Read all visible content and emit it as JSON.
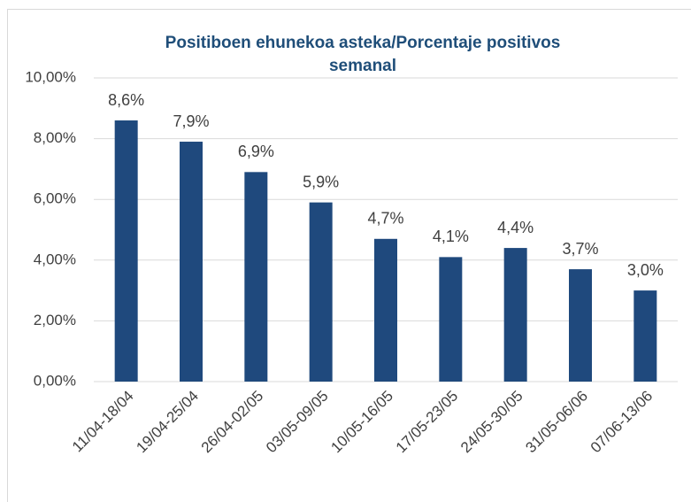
{
  "chart_data": {
    "type": "bar",
    "title": "Positiboen ehunekoa asteka/Porcentaje positivos semanal",
    "categories": [
      "11/04-18/04",
      "19/04-25/04",
      "26/04-02/05",
      "03/05-09/05",
      "10/05-16/05",
      "17/05-23/05",
      "24/05-30/05",
      "31/05-06/06",
      "07/06-13/06"
    ],
    "values": [
      8.6,
      7.9,
      6.9,
      5.9,
      4.7,
      4.1,
      4.4,
      3.7,
      3.0
    ],
    "value_labels": [
      "8,6%",
      "7,9%",
      "6,9%",
      "5,9%",
      "4,7%",
      "4,1%",
      "4,4%",
      "3,7%",
      "3,0%"
    ],
    "color": "#1f497d",
    "ylim": [
      0,
      10
    ],
    "yticks": [
      {
        "value": 0,
        "label": "0,00%"
      },
      {
        "value": 2,
        "label": "2,00%"
      },
      {
        "value": 4,
        "label": "4,00%"
      },
      {
        "value": 6,
        "label": "6,00%"
      },
      {
        "value": 8,
        "label": "8,00%"
      },
      {
        "value": 10,
        "label": "10,00%"
      }
    ],
    "grid": true
  }
}
